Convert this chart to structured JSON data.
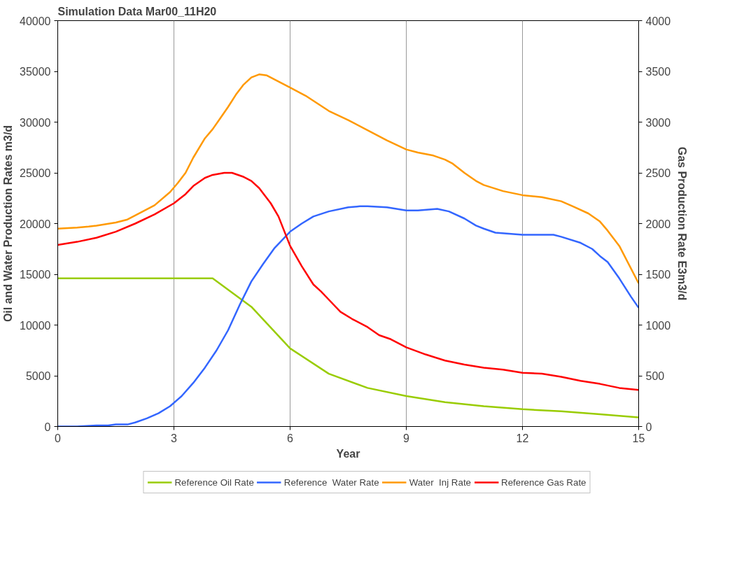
{
  "chart_data": {
    "type": "line",
    "title": "Simulation Data Mar00_11H20",
    "xlabel": "Year",
    "ylabel": "Oil and Water Production Rates m3/d",
    "y2label": "Gas Production Rate E3m3/d",
    "xlim": [
      0,
      15
    ],
    "xticks": [
      0,
      3,
      6,
      9,
      12,
      15
    ],
    "ylim": [
      0,
      40000
    ],
    "yticks": [
      0,
      5000,
      10000,
      15000,
      20000,
      25000,
      30000,
      35000,
      40000
    ],
    "y2lim": [
      0,
      4000
    ],
    "y2ticks": [
      0,
      500,
      1000,
      1500,
      2000,
      2500,
      3000,
      3500,
      4000
    ],
    "grid": "x",
    "legend": "bottom",
    "line_style": "solid",
    "marker": "none",
    "series": [
      {
        "name": "Reference Oil Rate",
        "color": "#99cc00",
        "x": [
          0,
          4,
          5,
          6,
          7,
          8,
          9,
          10,
          11,
          12,
          13,
          14,
          15
        ],
        "values": [
          14600,
          14600,
          11800,
          7700,
          5200,
          3800,
          3000,
          2400,
          2000,
          1700,
          1500,
          1200,
          900
        ]
      },
      {
        "name": "Reference  Water Rate",
        "color": "#3366ff",
        "x": [
          0,
          0.5,
          1,
          1.3,
          1.5,
          1.8,
          2,
          2.3,
          2.6,
          2.9,
          3.2,
          3.5,
          3.8,
          4.1,
          4.4,
          4.7,
          5,
          5.3,
          5.6,
          6,
          6.3,
          6.6,
          7,
          7.5,
          7.8,
          8,
          8.5,
          9,
          9.3,
          9.8,
          10.1,
          10.5,
          10.8,
          11,
          11.3,
          12,
          12.8,
          13,
          13.5,
          13.8,
          14,
          14.2,
          14.5,
          14.8,
          15
        ],
        "values": [
          0,
          0,
          100,
          100,
          200,
          200,
          400,
          800,
          1300,
          2000,
          3000,
          4300,
          5800,
          7500,
          9500,
          12000,
          14300,
          16000,
          17600,
          19200,
          20000,
          20700,
          21200,
          21600,
          21700,
          21700,
          21600,
          21300,
          21300,
          21450,
          21200,
          20500,
          19800,
          19500,
          19100,
          18900,
          18900,
          18700,
          18100,
          17500,
          16800,
          16200,
          14600,
          12800,
          11700
        ]
      },
      {
        "name": "Water  Inj Rate",
        "color": "#ff9900",
        "x": [
          0,
          0.5,
          0.8,
          1,
          1.5,
          1.8,
          2,
          2.5,
          2.9,
          3.1,
          3.3,
          3.5,
          3.8,
          4,
          4.2,
          4.4,
          4.6,
          4.8,
          5,
          5.2,
          5.4,
          5.6,
          6,
          6.4,
          6.8,
          7,
          7.5,
          8,
          8.5,
          9,
          9.3,
          9.7,
          10,
          10.2,
          10.5,
          10.8,
          11,
          11.5,
          12,
          12.5,
          13,
          13.3,
          13.7,
          14,
          14.2,
          14.5,
          15
        ],
        "values": [
          19500,
          19600,
          19700,
          19800,
          20100,
          20400,
          20800,
          21800,
          23100,
          24000,
          25000,
          26500,
          28400,
          29300,
          30400,
          31500,
          32700,
          33700,
          34400,
          34700,
          34600,
          34200,
          33400,
          32600,
          31600,
          31100,
          30200,
          29200,
          28200,
          27300,
          27000,
          26700,
          26300,
          25900,
          25000,
          24200,
          23800,
          23200,
          22800,
          22600,
          22200,
          21700,
          21000,
          20200,
          19300,
          17800,
          14100
        ]
      },
      {
        "name": "Reference Gas Rate",
        "color": "#ff0000",
        "axis": "y2",
        "x": [
          0,
          0.5,
          1,
          1.5,
          2,
          2.5,
          3,
          3.3,
          3.5,
          3.8,
          4,
          4.3,
          4.5,
          4.8,
          5,
          5.2,
          5.5,
          5.7,
          6,
          6.3,
          6.6,
          6.8,
          7,
          7.3,
          7.6,
          8,
          8.3,
          8.6,
          9,
          9.5,
          10,
          10.5,
          11,
          11.5,
          12,
          12.5,
          13,
          13.5,
          14,
          14.5,
          15
        ],
        "values": [
          1790,
          1820,
          1860,
          1920,
          2000,
          2090,
          2200,
          2290,
          2370,
          2450,
          2480,
          2500,
          2500,
          2460,
          2420,
          2350,
          2200,
          2070,
          1780,
          1580,
          1400,
          1330,
          1250,
          1130,
          1060,
          980,
          900,
          860,
          780,
          710,
          650,
          610,
          580,
          560,
          530,
          520,
          490,
          450,
          420,
          380,
          360
        ]
      }
    ]
  }
}
